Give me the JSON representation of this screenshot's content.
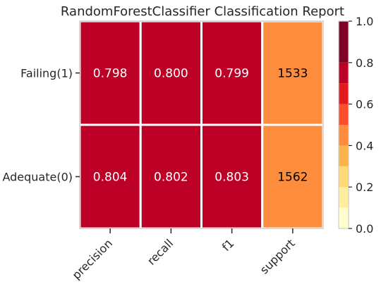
{
  "chart_data": {
    "type": "heatmap",
    "title": "RandomForestClassifier Classification Report",
    "rows": [
      "Failing(1)",
      "Adequate(0)"
    ],
    "columns": [
      "precision",
      "recall",
      "f1",
      "support"
    ],
    "values": [
      [
        0.798,
        0.8,
        0.799,
        1533
      ],
      [
        0.804,
        0.802,
        0.803,
        1562
      ]
    ],
    "cell_labels": [
      [
        "0.798",
        "0.800",
        "0.799",
        "1533"
      ],
      [
        "0.804",
        "0.802",
        "0.803",
        "1562"
      ]
    ],
    "colorbar": {
      "range": [
        0.0,
        1.0
      ],
      "ticks": [
        "0.0",
        "0.2",
        "0.4",
        "0.6",
        "0.8",
        "1.0"
      ],
      "levels": 8
    },
    "palette": [
      "#ffffcc",
      "#ffeda0",
      "#fed976",
      "#feb24c",
      "#fd8d3c",
      "#fc4e2a",
      "#e31a1c",
      "#bd0026",
      "#800026"
    ],
    "support_color": "#fd8d3c",
    "metric_color": "#bd0026",
    "grid": false
  }
}
